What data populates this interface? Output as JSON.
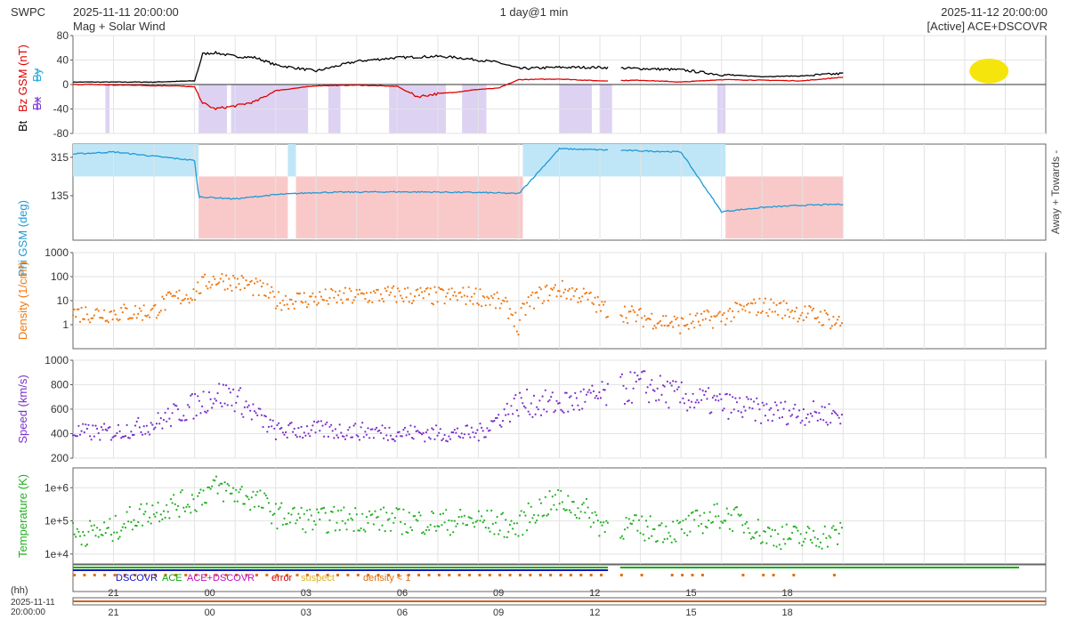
{
  "header": {
    "source": "SWPC",
    "start_time": "2025-11-11 20:00:00",
    "subtitle": "Mag + Solar Wind",
    "resolution": "1 day@1 min",
    "end_time": "2025-11-12 20:00:00",
    "active_source": "[Active] ACE+DSCOVR"
  },
  "colors": {
    "bt": "#000000",
    "bz": "#e00000",
    "bx": "#7a32d6",
    "by": "#22a8e0",
    "phi": "#1f9ad6",
    "density": "#f07810",
    "speed": "#7a2fcc",
    "temperature": "#22b022",
    "away_fill": "#bfe6f7",
    "towards_fill": "#f9c9c9",
    "southward_fill": "#ddd2f2",
    "dscovr": "#1515c8",
    "ace": "#11aa11",
    "ace_dscovr": "#c010c0",
    "error": "#cc0000",
    "suspect": "#e0b020",
    "density_lt1": "#e07010",
    "highlight": "#f5e400"
  },
  "chart_data": [
    {
      "type": "line",
      "id": "mag",
      "ylabel_parts": [
        "Bt",
        "Bx",
        "By",
        "Bz GSM (nT)"
      ],
      "ylim": [
        -80,
        80
      ],
      "yticks": [
        80,
        40,
        0,
        -40,
        -80
      ],
      "series": [
        {
          "name": "Bt",
          "x": [
            0,
            0.5,
            1,
            1.5,
            2,
            2.5,
            3,
            3.2,
            3.5,
            4,
            4.5,
            5,
            6,
            7,
            8,
            8.5,
            9,
            9.5,
            10,
            10.5,
            11,
            12,
            13,
            14,
            15,
            16,
            17,
            18,
            19
          ],
          "y": [
            4,
            4,
            4,
            4,
            4,
            5,
            6,
            50,
            52,
            46,
            44,
            32,
            22,
            38,
            44,
            45,
            46,
            44,
            40,
            36,
            26,
            28,
            28,
            26,
            24,
            16,
            13,
            14,
            18
          ]
        },
        {
          "name": "Bz",
          "x": [
            0,
            0.5,
            1,
            1.5,
            2,
            2.5,
            3,
            3.2,
            3.5,
            4,
            4.5,
            5,
            6,
            7,
            8,
            8.5,
            9,
            9.5,
            10,
            10.5,
            11,
            12,
            13,
            14,
            15,
            16,
            17,
            18,
            19
          ],
          "y": [
            0,
            0,
            -1,
            -1,
            -2,
            -2,
            -4,
            -30,
            -40,
            -35,
            -28,
            -10,
            -2,
            -1,
            -3,
            -20,
            -15,
            -12,
            -8,
            -6,
            8,
            9,
            6,
            7,
            4,
            8,
            7,
            6,
            12
          ]
        }
      ],
      "southward_bz_intervals": [
        [
          0.8,
          0.9
        ],
        [
          3.1,
          3.8
        ],
        [
          3.9,
          5.8
        ],
        [
          6.3,
          6.6
        ],
        [
          7.8,
          9.2
        ],
        [
          9.6,
          10.2
        ],
        [
          12.0,
          12.8
        ],
        [
          13.0,
          13.3
        ],
        [
          15.9,
          16.1
        ]
      ]
    },
    {
      "type": "line",
      "id": "phi",
      "ylabel": "Phi GSM (deg)",
      "right_label": "Away + Towards -",
      "yticks": [
        315,
        135
      ],
      "series": [
        {
          "name": "Phi",
          "x": [
            0,
            1,
            2,
            3,
            3.1,
            4,
            5,
            6,
            7,
            8,
            9,
            10,
            11,
            12,
            13,
            14,
            15,
            16,
            17,
            18,
            19
          ],
          "y": [
            330,
            340,
            320,
            300,
            130,
            120,
            140,
            150,
            152,
            153,
            152,
            150,
            145,
            355,
            350,
            345,
            340,
            60,
            80,
            90,
            95
          ]
        }
      ],
      "away_intervals": [
        [
          0,
          3.1
        ],
        [
          5.3,
          5.5
        ],
        [
          11.1,
          16.1
        ]
      ],
      "towards_intervals": [
        [
          3.1,
          5.3
        ],
        [
          5.5,
          11.1
        ],
        [
          16.1,
          19
        ]
      ]
    },
    {
      "type": "scatter",
      "id": "density",
      "ylabel": "Density (1/cm³)",
      "yscale": "log",
      "yticks": [
        1000,
        100,
        10,
        1
      ],
      "series": [
        {
          "name": "Density",
          "x": [
            0,
            1,
            2,
            3,
            3.5,
            4,
            5,
            6,
            7,
            8,
            9,
            10,
            11,
            12,
            13,
            14,
            15,
            16,
            17,
            18,
            19
          ],
          "y": [
            3,
            3,
            3.5,
            20,
            80,
            60,
            10,
            12,
            15,
            18,
            15,
            16,
            0.3,
            30,
            5,
            2,
            1,
            2,
            6,
            3,
            1
          ]
        }
      ]
    },
    {
      "type": "scatter",
      "id": "speed",
      "ylabel": "Speed (km/s)",
      "ylim": [
        200,
        1000
      ],
      "yticks": [
        1000,
        800,
        600,
        400,
        200
      ],
      "series": [
        {
          "name": "Speed",
          "x": [
            0,
            1,
            2,
            3,
            3.5,
            4,
            5,
            6,
            7,
            8,
            9,
            10,
            11,
            12,
            13,
            14,
            15,
            16,
            17,
            18,
            19
          ],
          "y": [
            410,
            410,
            480,
            630,
            720,
            700,
            420,
            430,
            420,
            410,
            400,
            400,
            650,
            640,
            700,
            800,
            700,
            640,
            580,
            570,
            560
          ]
        }
      ]
    },
    {
      "type": "scatter",
      "id": "temperature",
      "ylabel": "Temperature (K)",
      "yscale": "log",
      "yticks": [
        1000000,
        100000,
        10000
      ],
      "ytick_labels": [
        "1e+6",
        "1e+5",
        "1e+4"
      ],
      "series": [
        {
          "name": "Temperature",
          "x": [
            0,
            1,
            2,
            3,
            3.5,
            4,
            5,
            6,
            7,
            8,
            9,
            10,
            11,
            12,
            13,
            14,
            15,
            16,
            17,
            18,
            19
          ],
          "y": [
            40000,
            50000,
            200000,
            400000,
            1000000,
            700000,
            150000,
            100000,
            120000,
            100000,
            90000,
            100000,
            60000,
            400000,
            80000,
            60000,
            50000,
            150000,
            40000,
            30000,
            40000
          ]
        }
      ]
    }
  ],
  "source_legend": [
    "DSCOVR",
    "ACE",
    "ACE+DSCOVR",
    "error",
    "suspect",
    "density < 1"
  ],
  "x_axis": {
    "hh_label": "(hh)",
    "start_date": "2025-11-11",
    "start_time": "20:00:00",
    "ticks": [
      "21",
      "00",
      "03",
      "06",
      "09",
      "12",
      "15",
      "18"
    ]
  }
}
